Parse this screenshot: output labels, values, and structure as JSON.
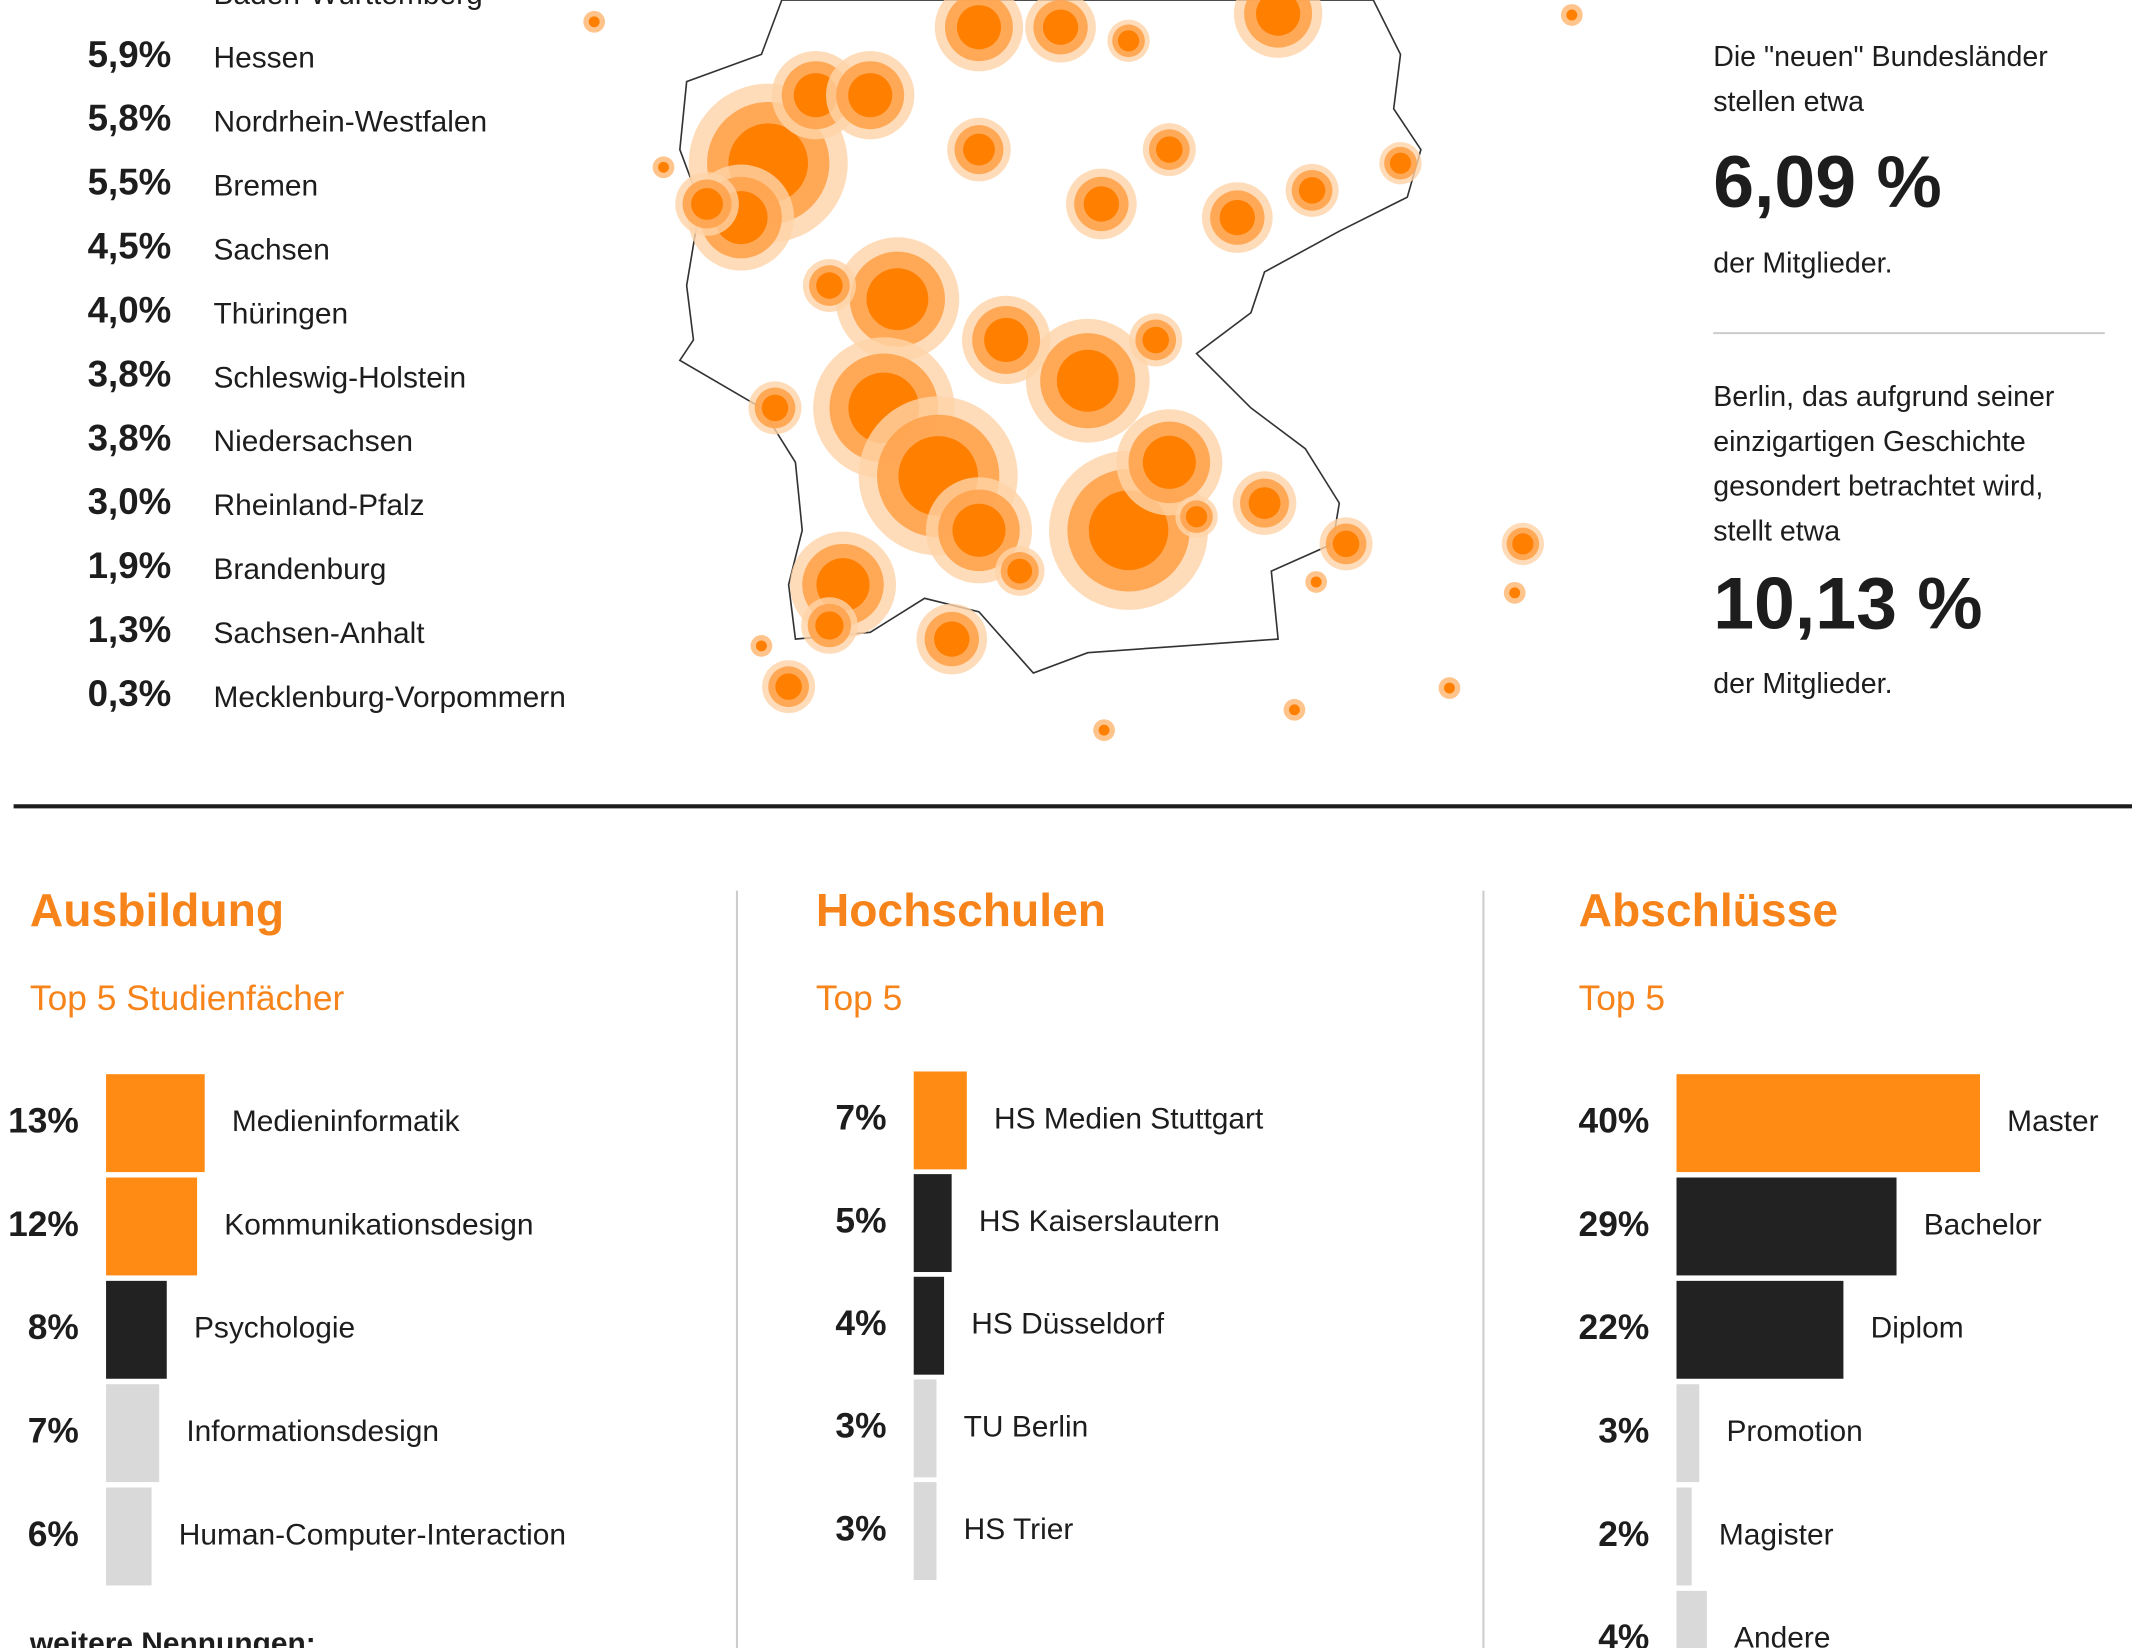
{
  "states": [
    {
      "name": "Baden-Württemberg"
    },
    {
      "share": "5,9%",
      "name": "Hessen"
    },
    {
      "share": "5,8%",
      "name": "Nordrhein-Westfalen"
    },
    {
      "share": "5,5%",
      "name": "Bremen"
    },
    {
      "share": "4,5%",
      "name": "Sachsen"
    },
    {
      "share": "4,0%",
      "name": "Thüringen"
    },
    {
      "share": "3,8%",
      "name": "Schleswig-Holstein"
    },
    {
      "share": "3,8%",
      "name": "Niedersachsen"
    },
    {
      "share": "3,0%",
      "name": "Rheinland-Pfalz"
    },
    {
      "share": "1,9%",
      "name": "Brandenburg"
    },
    {
      "share": "1,3%",
      "name": "Sachsen-Anhalt"
    },
    {
      "share": "0,3%",
      "name": "Mecklenburg-Vorpommern"
    }
  ],
  "new_states": {
    "lines": [
      "Die \"neuen\" Bundesländer",
      "stellen etwa"
    ],
    "value": "6,09 %",
    "outro": "der Mitglieder."
  },
  "berlin": {
    "lines": [
      "Berlin, das aufgrund seiner",
      "einzigartigen Geschichte",
      "gesondert betrachtet wird,",
      "stellt etwa"
    ],
    "value": "10,13 %",
    "outro": "der Mitglieder."
  },
  "panels": [
    {
      "title": "Ausbildung",
      "subtitle": "Top 5 Studienfächer",
      "items": [
        {
          "value": 13,
          "value_label": "13%",
          "label": "Medieninformatik",
          "color": "#ff8a14"
        },
        {
          "value": 12,
          "value_label": "12%",
          "label": "Kommunikationsdesign",
          "color": "#ff8a14"
        },
        {
          "value": 8,
          "value_label": "8%",
          "label": "Psychologie",
          "color": "#222222"
        },
        {
          "value": 7,
          "value_label": "7%",
          "label": "Informationsdesign",
          "color": "#d9d9d9"
        },
        {
          "value": 6,
          "value_label": "6%",
          "label": "Human-Computer-Interaction",
          "color": "#d9d9d9"
        }
      ]
    },
    {
      "title": "Hochschulen",
      "subtitle": "Top 5",
      "items": [
        {
          "value": 7,
          "value_label": "7%",
          "label": "HS Medien Stuttgart",
          "color": "#ff8a14"
        },
        {
          "value": 5,
          "value_label": "5%",
          "label": "HS Kaiserslautern",
          "color": "#222222"
        },
        {
          "value": 4,
          "value_label": "4%",
          "label": "HS Düsseldorf",
          "color": "#222222"
        },
        {
          "value": 3,
          "value_label": "3%",
          "label": "TU Berlin",
          "color": "#d9d9d9"
        },
        {
          "value": 3,
          "value_label": "3%",
          "label": "HS Trier",
          "color": "#d9d9d9"
        }
      ]
    },
    {
      "title": "Abschlüsse",
      "subtitle": "Top 5",
      "items": [
        {
          "value": 40,
          "value_label": "40%",
          "label": "Master",
          "color": "#ff8a14"
        },
        {
          "value": 29,
          "value_label": "29%",
          "label": "Bachelor",
          "color": "#222222"
        },
        {
          "value": 22,
          "value_label": "22%",
          "label": "Diplom",
          "color": "#222222"
        },
        {
          "value": 3,
          "value_label": "3%",
          "label": "Promotion",
          "color": "#d9d9d9"
        },
        {
          "value": 2,
          "value_label": "2%",
          "label": "Magister",
          "color": "#d9d9d9"
        },
        {
          "value": 4,
          "value_label": "4%",
          "label": "Andere",
          "color": "#d9d9d9"
        }
      ]
    }
  ],
  "footer": "weitere Nennungen:"
}
